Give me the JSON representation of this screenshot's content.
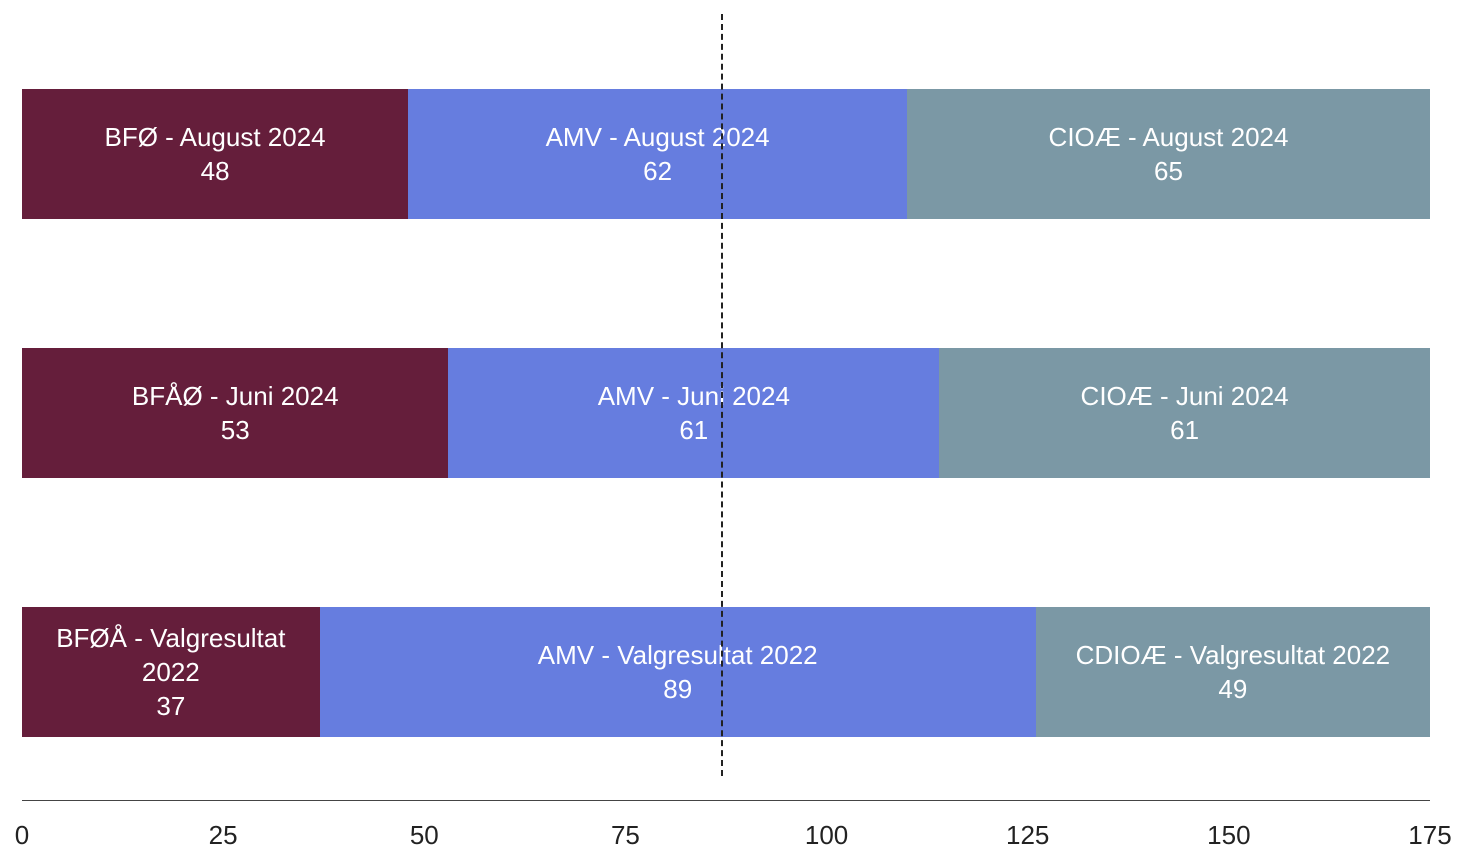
{
  "chart_data": {
    "type": "stacked-bar-horizontal",
    "categories": [
      null,
      null,
      null
    ],
    "series": [
      {
        "color": "#651e3b",
        "values": [
          48,
          53,
          37
        ],
        "labels": [
          "BFØ - August 2024",
          "BFÅØ - Juni 2024",
          "BFØÅ - Valgresultat 2022"
        ]
      },
      {
        "color": "#667ddf",
        "values": [
          62,
          61,
          89
        ],
        "labels": [
          "AMV - August 2024",
          "AMV - Juni 2024",
          "AMV - Valgresultat 2022"
        ]
      },
      {
        "color": "#7b98a5",
        "values": [
          65,
          61,
          49
        ],
        "labels": [
          "CIOÆ - August 2024",
          "CIOÆ - Juni 2024",
          "CDIOÆ - Valgresultat 2022"
        ]
      }
    ],
    "xlim": [
      0,
      175
    ],
    "xticks": [
      0,
      25,
      50,
      75,
      100,
      125,
      150,
      175
    ],
    "majority_line": 87
  }
}
